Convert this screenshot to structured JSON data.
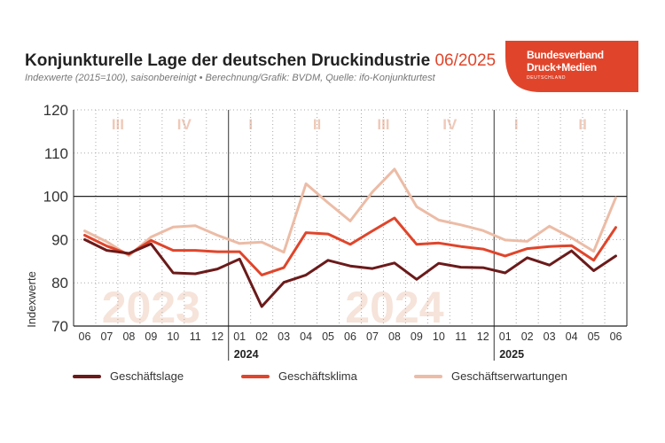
{
  "header": {
    "title": "Konjunkturelle Lage der deutschen Druckindustrie",
    "title_period": "06/2025",
    "subtitle": "Indexwerte (2015=100), saisonbereinigt • Berechnung/Grafik: BVDM, Quelle: ifo-Konjunkturtest"
  },
  "logo": {
    "line1": "Bundesverband",
    "line2": "Druck+Medien",
    "line3": "DEUTSCHLAND",
    "color": "#e0452b"
  },
  "colors": {
    "lage": "#6b1a1a",
    "klima": "#e0452b",
    "erwartungen": "#ecbca6",
    "quarter_label": "#f0c9b8",
    "year_watermark": "#f6e3da"
  },
  "chart_data": {
    "type": "line",
    "ylabel": "Indexwerte",
    "ylim": [
      70,
      120
    ],
    "yticks": [
      70,
      80,
      90,
      100,
      110,
      120
    ],
    "reference_line": 100,
    "grid": true,
    "legend_position": "bottom",
    "x": [
      "06",
      "07",
      "08",
      "09",
      "10",
      "11",
      "12",
      "01",
      "02",
      "03",
      "04",
      "05",
      "06",
      "07",
      "08",
      "09",
      "10",
      "11",
      "12",
      "01",
      "02",
      "03",
      "04",
      "05",
      "06"
    ],
    "year_labels": [
      {
        "label": "2024",
        "at_index": 7
      },
      {
        "label": "2025",
        "at_index": 19
      }
    ],
    "quarter_labels": [
      {
        "label": "III",
        "at_index": 1.5
      },
      {
        "label": "IV",
        "at_index": 4.5
      },
      {
        "label": "I",
        "at_index": 7.5
      },
      {
        "label": "II",
        "at_index": 10.5
      },
      {
        "label": "III",
        "at_index": 13.5
      },
      {
        "label": "IV",
        "at_index": 16.5
      },
      {
        "label": "I",
        "at_index": 19.5
      },
      {
        "label": "II",
        "at_index": 22.5
      }
    ],
    "year_watermarks": [
      {
        "label": "2023",
        "at_index": 3
      },
      {
        "label": "2024",
        "at_index": 14
      }
    ],
    "series": [
      {
        "key": "lage",
        "name": "Geschäftslage",
        "values": [
          90,
          87.5,
          86.8,
          89,
          82.3,
          82.1,
          83.2,
          85.5,
          74.5,
          80.1,
          81.8,
          85.2,
          83.9,
          83.3,
          84.6,
          80.8,
          84.5,
          83.6,
          83.5,
          82.3,
          85.8,
          84.1,
          87.4,
          82.8,
          86.2
        ]
      },
      {
        "key": "klima",
        "name": "Geschäftsklima",
        "values": [
          91,
          88.5,
          86.6,
          89.8,
          87.5,
          87.5,
          87.2,
          87.2,
          81.8,
          83.5,
          91.6,
          91.3,
          88.9,
          92,
          95,
          88.9,
          89.2,
          88.4,
          87.8,
          86.2,
          87.9,
          88.4,
          88.6,
          85.2,
          92.8
        ]
      },
      {
        "key": "erwartungen",
        "name": "Geschäftserwartungen",
        "values": [
          92,
          89.5,
          86.3,
          90.6,
          92.9,
          93.2,
          91,
          89.1,
          89.4,
          87.1,
          102.9,
          98.5,
          94.3,
          101,
          106.3,
          97.6,
          94.5,
          93.4,
          92.1,
          89.9,
          89.6,
          93.1,
          90.4,
          87.3,
          99.7
        ]
      }
    ]
  }
}
